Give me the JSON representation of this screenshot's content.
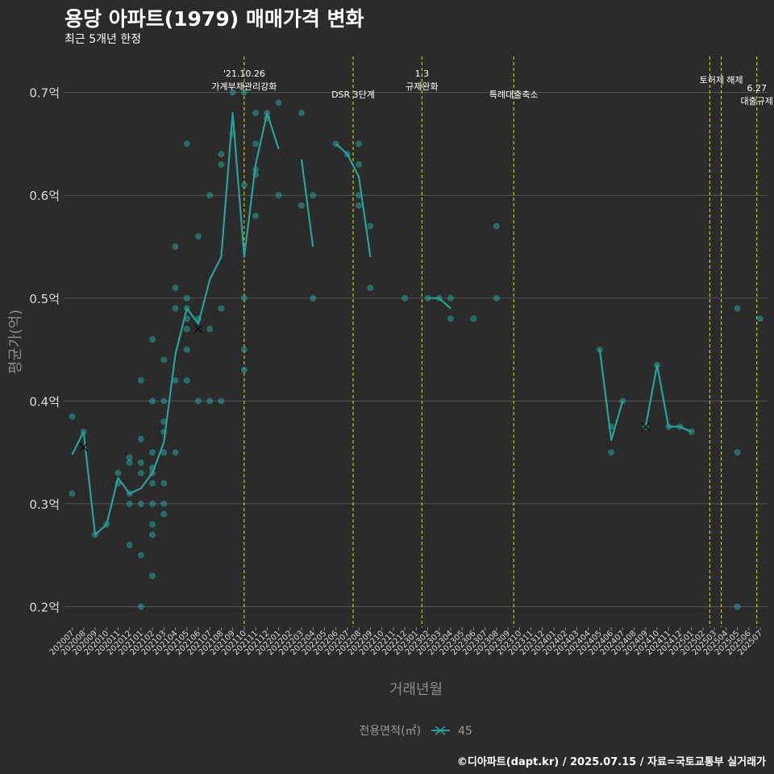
{
  "header": {
    "title": "용당 아파트(1979) 매매가격 변화",
    "subtitle": "최근 5개년 한정"
  },
  "caption": "©디아파트(dapt.kr) / 2025.07.15 / 자료=국토교통부 실거래가",
  "chart_data": {
    "type": "line",
    "xlabel": "거래년월",
    "ylabel": "평균가(억)",
    "ylim": [
      0.18,
      0.735
    ],
    "y_ticks": [
      0.2,
      0.3,
      0.4,
      0.5,
      0.6,
      0.7
    ],
    "y_tick_labels": [
      "0.2억",
      "0.3억",
      "0.4억",
      "0.5억",
      "0.6억",
      "0.7억"
    ],
    "grid": true,
    "colors": {
      "series": "#2aa198",
      "vline": "#e6e600",
      "grid": "#555555",
      "background": "#2b2b2c"
    },
    "categories": [
      "202007",
      "202008",
      "202009",
      "202010",
      "202011",
      "202012",
      "202101",
      "202102",
      "202103",
      "202104",
      "202105",
      "202106",
      "202107",
      "202108",
      "202109",
      "202110",
      "202111",
      "202112",
      "202201",
      "202202",
      "202203",
      "202204",
      "202205",
      "202206",
      "202207",
      "202208",
      "202209",
      "202210",
      "202211",
      "202212",
      "202301",
      "202302",
      "202303",
      "202304",
      "202305",
      "202306",
      "202307",
      "202308",
      "202309",
      "202310",
      "202311",
      "202312",
      "202401",
      "202402",
      "202403",
      "202404",
      "202405",
      "202406",
      "202407",
      "202408",
      "202409",
      "202410",
      "202411",
      "202412",
      "202501",
      "202502",
      "202503",
      "202504",
      "202505",
      "202506",
      "202507"
    ],
    "x_tick_labels": [
      "202007",
      "202008",
      "202009",
      "202010",
      "202011",
      "202012",
      "202101",
      "202102",
      "202103",
      "202104",
      "202105",
      "202106",
      "202107",
      "202108",
      "202109",
      "202110",
      "202111",
      "202112",
      "202201",
      "202202",
      "202203",
      "202204",
      "202205",
      "202206",
      "202207",
      "202208",
      "202209",
      "202210",
      "202211",
      "202212",
      "202301",
      "202302",
      "202303",
      "202304",
      "202305",
      "202306",
      "202307",
      "202308",
      "202309",
      "202310",
      "202311",
      "202312",
      "202401",
      "202402",
      "202403",
      "202404",
      "202405",
      "202406",
      "202407",
      "202408",
      "202409",
      "202410",
      "202411",
      "202412",
      "202501",
      "202502",
      "202503",
      "202504",
      "202505",
      "202506",
      "202507"
    ],
    "series": [
      {
        "name": "45",
        "line_segments": [
          [
            [
              0.0,
              0.348
            ],
            [
              1.0,
              0.37
            ],
            [
              2.0,
              0.27
            ],
            [
              3.0,
              0.28
            ],
            [
              4.0,
              0.325
            ],
            [
              5.0,
              0.31
            ],
            [
              6.0,
              0.315
            ],
            [
              7.0,
              0.33
            ],
            [
              8.0,
              0.36
            ],
            [
              9.0,
              0.445
            ],
            [
              10.0,
              0.49
            ],
            [
              11.0,
              0.475
            ],
            [
              12.0,
              0.518
            ],
            [
              13.0,
              0.54
            ],
            [
              14.0,
              0.68
            ],
            [
              15.0,
              0.54
            ],
            [
              16.0,
              0.63
            ],
            [
              17.0,
              0.68
            ],
            [
              18.0,
              0.645
            ]
          ],
          [
            [
              20.0,
              0.635
            ],
            [
              21.0,
              0.55
            ]
          ],
          [
            [
              23.0,
              0.65
            ],
            [
              24.0,
              0.64
            ],
            [
              25.0,
              0.618
            ],
            [
              26.0,
              0.54
            ]
          ],
          [
            [
              31.0,
              0.5
            ],
            [
              32.0,
              0.5
            ],
            [
              33.0,
              0.49
            ]
          ],
          [
            [
              46.0,
              0.45
            ],
            [
              47.0,
              0.362
            ],
            [
              48.0,
              0.4
            ]
          ],
          [
            [
              50.0,
              0.375
            ],
            [
              51.0,
              0.435
            ],
            [
              52.0,
              0.375
            ],
            [
              53.0,
              0.375
            ],
            [
              54.0,
              0.37
            ]
          ]
        ],
        "points": [
          [
            0.0,
            0.385
          ],
          [
            0.0,
            0.31
          ],
          [
            1.0,
            0.37
          ],
          [
            2.0,
            0.27
          ],
          [
            3.0,
            0.28
          ],
          [
            4.0,
            0.33
          ],
          [
            4.0,
            0.32
          ],
          [
            5.0,
            0.345
          ],
          [
            5.0,
            0.34
          ],
          [
            5.0,
            0.31
          ],
          [
            5.0,
            0.3
          ],
          [
            5.0,
            0.26
          ],
          [
            6.0,
            0.42
          ],
          [
            6.0,
            0.363
          ],
          [
            6.0,
            0.34
          ],
          [
            6.0,
            0.33
          ],
          [
            6.0,
            0.3
          ],
          [
            6.0,
            0.25
          ],
          [
            6.0,
            0.2
          ],
          [
            7.0,
            0.46
          ],
          [
            7.0,
            0.4
          ],
          [
            7.0,
            0.35
          ],
          [
            7.0,
            0.335
          ],
          [
            7.0,
            0.33
          ],
          [
            7.0,
            0.32
          ],
          [
            7.0,
            0.3
          ],
          [
            7.0,
            0.28
          ],
          [
            7.0,
            0.27
          ],
          [
            7.0,
            0.23
          ],
          [
            8.0,
            0.44
          ],
          [
            8.0,
            0.4
          ],
          [
            8.0,
            0.38
          ],
          [
            8.0,
            0.37
          ],
          [
            8.0,
            0.35
          ],
          [
            8.0,
            0.32
          ],
          [
            8.0,
            0.3
          ],
          [
            8.0,
            0.29
          ],
          [
            9.0,
            0.55
          ],
          [
            9.0,
            0.51
          ],
          [
            9.0,
            0.49
          ],
          [
            9.0,
            0.42
          ],
          [
            9.0,
            0.35
          ],
          [
            10.0,
            0.65
          ],
          [
            10.0,
            0.5
          ],
          [
            10.0,
            0.49
          ],
          [
            10.0,
            0.48
          ],
          [
            10.0,
            0.47
          ],
          [
            10.0,
            0.45
          ],
          [
            10.0,
            0.42
          ],
          [
            11.0,
            0.56
          ],
          [
            11.0,
            0.48
          ],
          [
            11.0,
            0.4
          ],
          [
            12.0,
            0.6
          ],
          [
            12.0,
            0.47
          ],
          [
            12.0,
            0.4
          ],
          [
            13.0,
            0.64
          ],
          [
            13.0,
            0.63
          ],
          [
            13.0,
            0.49
          ],
          [
            13.0,
            0.4
          ],
          [
            14.0,
            0.7
          ],
          [
            14.0,
            0.66
          ],
          [
            15.0,
            0.7
          ],
          [
            15.0,
            0.61
          ],
          [
            15.0,
            0.5
          ],
          [
            15.0,
            0.45
          ],
          [
            15.0,
            0.43
          ],
          [
            16.0,
            0.68
          ],
          [
            16.0,
            0.65
          ],
          [
            16.0,
            0.625
          ],
          [
            16.0,
            0.62
          ],
          [
            16.0,
            0.58
          ],
          [
            17.0,
            0.68
          ],
          [
            17.0,
            0.675
          ],
          [
            18.0,
            0.69
          ],
          [
            18.0,
            0.6
          ],
          [
            20.0,
            0.68
          ],
          [
            20.0,
            0.59
          ],
          [
            21.0,
            0.6
          ],
          [
            21.0,
            0.5
          ],
          [
            23.0,
            0.65
          ],
          [
            24.0,
            0.64
          ],
          [
            25.0,
            0.65
          ],
          [
            25.0,
            0.63
          ],
          [
            25.0,
            0.6
          ],
          [
            25.0,
            0.59
          ],
          [
            26.0,
            0.57
          ],
          [
            26.0,
            0.51
          ],
          [
            29.0,
            0.5
          ],
          [
            31.0,
            0.5
          ],
          [
            32.0,
            0.5
          ],
          [
            33.0,
            0.5
          ],
          [
            33.0,
            0.48
          ],
          [
            35.0,
            0.48
          ],
          [
            37.0,
            0.57
          ],
          [
            37.0,
            0.5
          ],
          [
            46.0,
            0.45
          ],
          [
            47.0,
            0.375
          ],
          [
            47.0,
            0.35
          ],
          [
            48.0,
            0.4
          ],
          [
            50.0,
            0.375
          ],
          [
            51.0,
            0.435
          ],
          [
            52.0,
            0.375
          ],
          [
            53.0,
            0.375
          ],
          [
            54.0,
            0.37
          ],
          [
            58.0,
            0.49
          ],
          [
            58.0,
            0.35
          ],
          [
            58.0,
            0.2
          ],
          [
            60.0,
            0.48
          ]
        ],
        "x_markers": [
          [
            1.0,
            0.355
          ],
          [
            11.0,
            0.47
          ],
          [
            50.0,
            0.375
          ]
        ]
      }
    ],
    "annotations": [
      {
        "x": 15.0,
        "lines": [
          "'21.10.26",
          "가계부채관리강화"
        ]
      },
      {
        "x": 24.5,
        "lines": [
          "DSR 3단계"
        ]
      },
      {
        "x": 30.5,
        "lines": [
          "1.3",
          "규제완화"
        ]
      },
      {
        "x": 38.5,
        "lines": [
          "특례대출축소"
        ]
      },
      {
        "x": 55.6,
        "lines": []
      },
      {
        "x": 56.6,
        "lines": [
          "토허제 해제"
        ]
      },
      {
        "x": 59.7,
        "lines": [
          "6.27",
          "대출규제"
        ]
      }
    ],
    "legend": {
      "title": "전용면적(㎡)",
      "label": "45",
      "position": "bottom"
    }
  }
}
